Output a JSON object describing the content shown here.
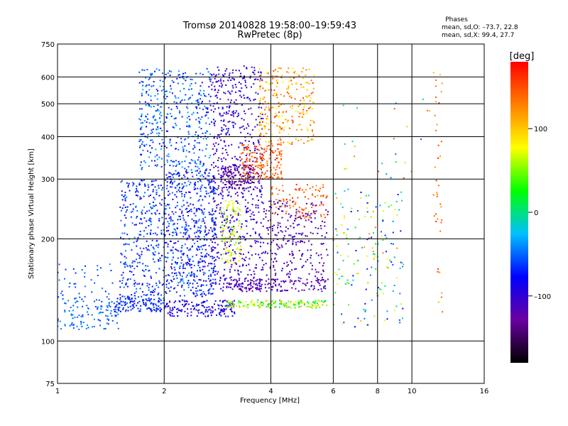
{
  "chart_data": {
    "type": "scatter",
    "title": "Tromsø 20140828 19:58:00–19:59:43",
    "subtitle": "RwPretec (8p)",
    "stats": {
      "heading": "Phases",
      "line1": "mean, sd,O: –73.7, 22.8",
      "line2": "mean, sd,X: 99.4, 27.7"
    },
    "xlabel": "Frequency [MHz]",
    "ylabel": "Stationary phase Virtual Height [km]",
    "xscale": "log2",
    "yscale": "log",
    "xlim": [
      1,
      16
    ],
    "ylim": [
      75,
      750
    ],
    "xticks": [
      1,
      2,
      4,
      6,
      8,
      10,
      16
    ],
    "xtick_labels": [
      "1",
      "2",
      "4",
      "6",
      "8",
      "10",
      "16"
    ],
    "yticks": [
      75,
      100,
      200,
      300,
      400,
      500,
      600,
      750
    ],
    "ytick_labels": [
      "75",
      "100",
      "200",
      "300",
      "400",
      "500",
      "600",
      "750"
    ],
    "grid": true,
    "colorbar": {
      "label": "[deg]",
      "range": [
        -180,
        180
      ],
      "ticks": [
        100,
        0,
        -100
      ],
      "tick_labels": [
        "100",
        "0",
        "–100"
      ],
      "colormap": "rainbow",
      "stops": [
        "#000000",
        "#6a00a0",
        "#0000ff",
        "#00c0ff",
        "#00ff00",
        "#ffff00",
        "#ff8000",
        "#ff0000"
      ]
    },
    "clusters": [
      {
        "f": [
          1.0,
          1.5
        ],
        "h": [
          108,
          135
        ],
        "phase": [
          -60,
          -40
        ],
        "n": 120
      },
      {
        "f": [
          1.0,
          1.45
        ],
        "h": [
          130,
          170
        ],
        "phase": [
          -70,
          -40
        ],
        "n": 40
      },
      {
        "f": [
          1.45,
          2.0
        ],
        "h": [
          122,
          135
        ],
        "phase": [
          -80,
          -55
        ],
        "n": 120
      },
      {
        "f": [
          2.0,
          3.2
        ],
        "h": [
          118,
          132
        ],
        "phase": [
          -110,
          -70
        ],
        "n": 160
      },
      {
        "f": [
          1.5,
          2.0
        ],
        "h": [
          135,
          300
        ],
        "phase": [
          -90,
          -40
        ],
        "n": 320
      },
      {
        "f": [
          2.0,
          2.8
        ],
        "h": [
          135,
          320
        ],
        "phase": [
          -100,
          -40
        ],
        "n": 600
      },
      {
        "f": [
          1.7,
          2.7
        ],
        "h": [
          320,
          640
        ],
        "phase": [
          -80,
          -30
        ],
        "n": 420
      },
      {
        "f": [
          2.7,
          3.8
        ],
        "h": [
          140,
          650
        ],
        "phase": [
          -120,
          -80
        ],
        "n": 700
      },
      {
        "f": [
          2.9,
          3.6
        ],
        "h": [
          280,
          330
        ],
        "phase": [
          -150,
          -120
        ],
        "n": 120
      },
      {
        "f": [
          3.3,
          4.3
        ],
        "h": [
          300,
          380
        ],
        "phase": [
          120,
          170
        ],
        "n": 180
      },
      {
        "f": [
          3.7,
          5.3
        ],
        "h": [
          380,
          640
        ],
        "phase": [
          70,
          160
        ],
        "n": 260
      },
      {
        "f": [
          4.0,
          5.8
        ],
        "h": [
          230,
          290
        ],
        "phase": [
          120,
          170
        ],
        "n": 100
      },
      {
        "f": [
          3.8,
          5.8
        ],
        "h": [
          150,
          260
        ],
        "phase": [
          -140,
          -90
        ],
        "n": 260
      },
      {
        "f": [
          2.9,
          3.3
        ],
        "h": [
          170,
          260
        ],
        "phase": [
          40,
          90
        ],
        "n": 110
      },
      {
        "f": [
          3.0,
          5.8
        ],
        "h": [
          140,
          152
        ],
        "phase": [
          -140,
          -100
        ],
        "n": 140
      },
      {
        "f": [
          3.0,
          5.8
        ],
        "h": [
          125,
          132
        ],
        "phase": [
          0,
          120
        ],
        "n": 160
      },
      {
        "f": [
          6.0,
          9.5
        ],
        "h": [
          110,
          280
        ],
        "phase": [
          -90,
          130
        ],
        "n": 170
      },
      {
        "f": [
          11.5,
          12.2
        ],
        "h": [
          120,
          620
        ],
        "phase": [
          100,
          170
        ],
        "n": 40
      },
      {
        "f": [
          6.3,
          12.0
        ],
        "h": [
          300,
          520
        ],
        "phase": [
          -60,
          160
        ],
        "n": 25
      }
    ]
  }
}
